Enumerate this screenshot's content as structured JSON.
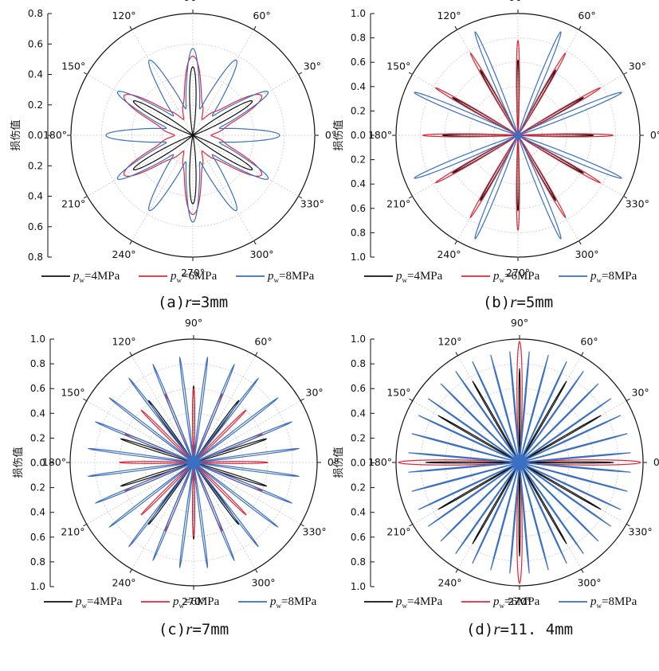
{
  "figure": {
    "y_axis_title": "损伤值",
    "series_colors": {
      "4MPa": "#111111",
      "6MPa": "#e0283c",
      "8MPa": "#3a6fc2"
    },
    "legend": [
      {
        "symbol": "p",
        "sub": "w",
        "text": "=4MPa"
      },
      {
        "symbol": "p",
        "sub": "w",
        "text": "=6MPa"
      },
      {
        "symbol": "p",
        "sub": "w",
        "text": "=8MPa"
      }
    ]
  },
  "chart_data": [
    {
      "type": "polar-line",
      "caption": {
        "prefix": "(a)",
        "var": "r",
        "value": "=3mm"
      },
      "radial_axis": {
        "label": "损伤值",
        "range": [
          0,
          0.8
        ],
        "ticks": [
          "0.8",
          "0.6",
          "0.4",
          "0.2",
          "0.0",
          "0.2",
          "0.4",
          "0.6",
          "0.8"
        ]
      },
      "angular_ticks": [
        "0°",
        "30°",
        "60°",
        "90°",
        "120°",
        "150°",
        "180°",
        "210°",
        "240°",
        "270°",
        "300°",
        "330°"
      ],
      "series": [
        {
          "name": "pw=4MPa",
          "color": "#111111",
          "spokes": {
            "count": 6,
            "offset_deg": 90,
            "peak": 0.45,
            "base": 0.0,
            "power": 18,
            "lobes": 0
          }
        },
        {
          "name": "pw=6MPa",
          "color": "#e0283c",
          "spokes": {
            "count": 6,
            "offset_deg": 90,
            "peak": 0.52,
            "base": 0.12,
            "power": 6,
            "lobes": 0.12
          }
        },
        {
          "name": "pw=8MPa",
          "color": "#3a6fc2",
          "spokes": {
            "count": 12,
            "offset_deg": 0,
            "peak": 0.57,
            "base": 0.18,
            "power": 4,
            "lobes": 0.1
          }
        }
      ]
    },
    {
      "type": "polar-line",
      "caption": {
        "prefix": "(b)",
        "var": "r",
        "value": "=5mm"
      },
      "radial_axis": {
        "label": "损伤值",
        "range": [
          0,
          1.0
        ],
        "ticks": [
          "1.0",
          "0.8",
          "0.6",
          "0.4",
          "0.2",
          "0.0",
          "0.2",
          "0.4",
          "0.6",
          "0.8",
          "1.0"
        ]
      },
      "angular_ticks": [
        "0°",
        "30°",
        "60°",
        "90°",
        "120°",
        "150°",
        "180°",
        "210°",
        "240°",
        "270°",
        "300°",
        "330°"
      ],
      "series": [
        {
          "name": "pw=4MPa",
          "color": "#111111",
          "spokes": {
            "count": 12,
            "offset_deg": 0,
            "peak": 0.62,
            "base": 0.0,
            "power": 60,
            "lobes": 0
          }
        },
        {
          "name": "pw=6MPa",
          "color": "#e0283c",
          "spokes": {
            "count": 12,
            "offset_deg": 0,
            "peak": 0.78,
            "base": 0.0,
            "power": 40,
            "lobes": 0
          }
        },
        {
          "name": "pw=8MPa",
          "color": "#3a6fc2",
          "spokes": {
            "count": 8,
            "offset_deg": 22.5,
            "peak": 0.92,
            "base": 0.0,
            "power": 50,
            "lobes": 0.05
          }
        }
      ]
    },
    {
      "type": "polar-line",
      "caption": {
        "prefix": "(c)",
        "var": "r",
        "value": "=7mm"
      },
      "radial_axis": {
        "label": "损伤值",
        "range": [
          0,
          1.0
        ],
        "ticks": [
          "1.0",
          "0.8",
          "0.6",
          "0.4",
          "0.2",
          "0.0",
          "0.2",
          "0.4",
          "0.6",
          "0.8",
          "1.0"
        ]
      },
      "angular_ticks": [
        "0°",
        "30°",
        "60°",
        "90°",
        "120°",
        "150°",
        "180°",
        "210°",
        "240°",
        "270°",
        "300°",
        "330°"
      ],
      "series": [
        {
          "name": "pw=4MPa",
          "color": "#111111",
          "spokes": {
            "count": 10,
            "offset_deg": 18,
            "peak": 0.62,
            "base": 0.0,
            "power": 80,
            "lobes": 0
          }
        },
        {
          "name": "pw=6MPa",
          "color": "#e0283c",
          "spokes": {
            "count": 16,
            "offset_deg": 0,
            "peak": 0.6,
            "base": 0.0,
            "power": 30,
            "lobes": 0.05
          }
        },
        {
          "name": "pw=8MPa",
          "color": "#3a6fc2",
          "spokes": {
            "count": 24,
            "offset_deg": 7.5,
            "peak": 0.86,
            "base": 0.0,
            "power": 30,
            "lobes": 0.08
          }
        }
      ]
    },
    {
      "type": "polar-line",
      "caption": {
        "prefix": "(d)",
        "var": "r",
        "value": "=11. 4mm"
      },
      "radial_axis": {
        "label": "损伤值",
        "range": [
          0,
          1.0
        ],
        "ticks": [
          "1.0",
          "0.8",
          "0.6",
          "0.4",
          "0.2",
          "0.0",
          "0.2",
          "0.4",
          "0.6",
          "0.8",
          "1.0"
        ]
      },
      "angular_ticks": [
        "0°",
        "30°",
        "60°",
        "90°",
        "120°",
        "150°",
        "180°",
        "210°",
        "240°",
        "270°",
        "300°",
        "330°"
      ],
      "series": [
        {
          "name": "pw=4MPa",
          "color": "#111111",
          "spokes": {
            "count": 12,
            "offset_deg": 30,
            "peak": 0.76,
            "base": 0.0,
            "power": 200,
            "lobes": 0
          }
        },
        {
          "name": "pw=6MPa",
          "color": "#e0283c",
          "spokes": {
            "count": 4,
            "offset_deg": 0,
            "peak": 0.98,
            "base": 0.0,
            "power": 200,
            "lobes": 0
          }
        },
        {
          "name": "pw=8MPa",
          "color": "#3a6fc2",
          "spokes": {
            "count": 36,
            "offset_deg": 5,
            "peak": 0.9,
            "base": 0.0,
            "power": 60,
            "lobes": 0.1
          }
        }
      ]
    }
  ]
}
